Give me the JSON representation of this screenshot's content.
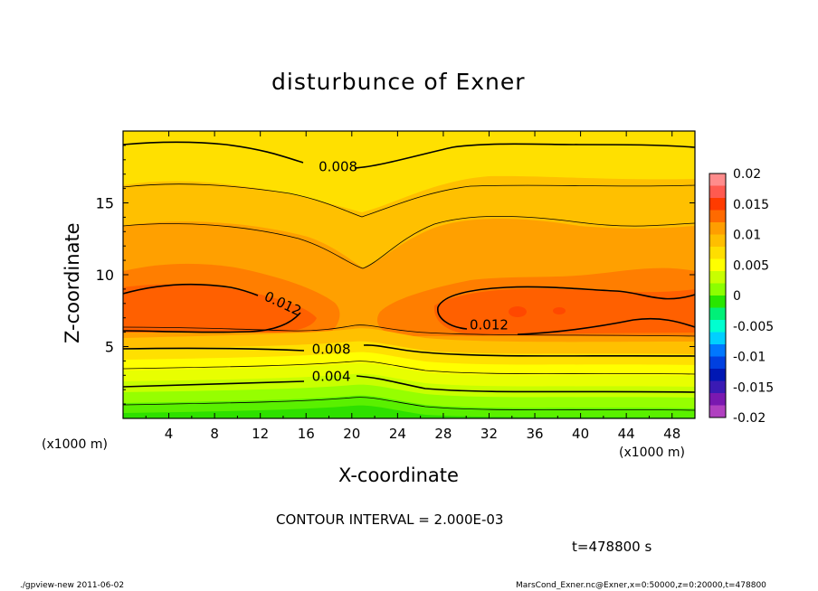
{
  "chart_data": {
    "type": "heatmap",
    "title": "disturbunce of Exner",
    "xlabel": "X-coordinate",
    "ylabel": "Z-coordinate",
    "x_unit": "(x1000 m)",
    "x_range": [
      0,
      50
    ],
    "y_range": [
      0,
      20
    ],
    "x_ticks": [
      "4",
      "8",
      "12",
      "16",
      "20",
      "24",
      "28",
      "32",
      "36",
      "40",
      "44",
      "48"
    ],
    "x_tick_values": [
      4,
      8,
      12,
      16,
      20,
      24,
      28,
      32,
      36,
      40,
      44,
      48
    ],
    "y_ticks": [
      "5",
      "10",
      "15"
    ],
    "y_tick_values": [
      5,
      10,
      15
    ],
    "contour_labels": [
      {
        "text": "0.008",
        "x": 18.8,
        "z": 17.2
      },
      {
        "text": "0.012",
        "x": 13.8,
        "z": 7.7
      },
      {
        "text": "0.012",
        "x": 32.0,
        "z": 6.2
      },
      {
        "text": "0.008",
        "x": 18.2,
        "z": 4.5
      },
      {
        "text": "0.004",
        "x": 18.2,
        "z": 2.6
      }
    ],
    "colorbar": {
      "labels": [
        "0.02",
        "0.015",
        "0.01",
        "0.005",
        "0",
        "-0.005",
        "-0.01",
        "-0.015",
        "-0.02"
      ],
      "values": [
        0.02,
        0.015,
        0.01,
        0.005,
        0,
        -0.005,
        -0.01,
        -0.015,
        -0.02
      ],
      "range": [
        -0.02,
        0.02
      ],
      "colors": [
        "#ff8c8c",
        "#ff5a50",
        "#ff3b00",
        "#ff6a00",
        "#ff9e00",
        "#ffbe00",
        "#ffde00",
        "#ffff00",
        "#c8ff00",
        "#8cff00",
        "#28e600",
        "#00f078",
        "#00ffd0",
        "#00d0ff",
        "#0078ff",
        "#0040e0",
        "#0018b4",
        "#3a1ab4",
        "#7a18b0",
        "#b040c0"
      ]
    },
    "contour_interval_text": "CONTOUR INTERVAL = 2.000E-03",
    "time_text": "t=478800 s"
  },
  "footer": {
    "left": "./gpview-new  2011-06-02",
    "right": "MarsCond_Exner.nc@Exner,x=0:50000,z=0:20000,t=478800"
  }
}
